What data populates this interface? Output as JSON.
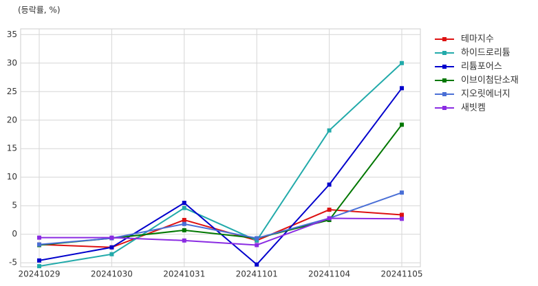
{
  "chart_data": {
    "type": "line",
    "ylabel": "(등락률, %)",
    "categories": [
      "20241029",
      "20241030",
      "20241031",
      "20241101",
      "20241104",
      "20241105"
    ],
    "series": [
      {
        "name": "테마지수",
        "color": "#dd1111",
        "values": [
          -1.8,
          -2.3,
          2.5,
          -1.1,
          4.3,
          3.4
        ]
      },
      {
        "name": "하이드로리튬",
        "color": "#22aaaa",
        "values": [
          -5.6,
          -3.5,
          4.6,
          -1.1,
          18.2,
          30.0
        ]
      },
      {
        "name": "리튬포어스",
        "color": "#0000cc",
        "values": [
          -4.6,
          -2.3,
          5.5,
          -5.3,
          8.7,
          25.6
        ]
      },
      {
        "name": "이브이첨단소재",
        "color": "#007700",
        "values": [
          -1.9,
          -0.7,
          0.7,
          -0.7,
          2.5,
          19.2
        ]
      },
      {
        "name": "지오릿에너지",
        "color": "#4a6fd6",
        "values": [
          -1.8,
          -0.7,
          1.8,
          -0.7,
          2.8,
          7.3
        ]
      },
      {
        "name": "새빗켐",
        "color": "#8a2be2",
        "values": [
          -0.6,
          -0.6,
          -1.1,
          -1.9,
          2.8,
          2.7
        ]
      }
    ],
    "ylim": [
      -5.7,
      36
    ],
    "yticks": [
      -5,
      0,
      5,
      10,
      15,
      20,
      25,
      30,
      35
    ],
    "grid": true,
    "legend": "outside-right"
  }
}
